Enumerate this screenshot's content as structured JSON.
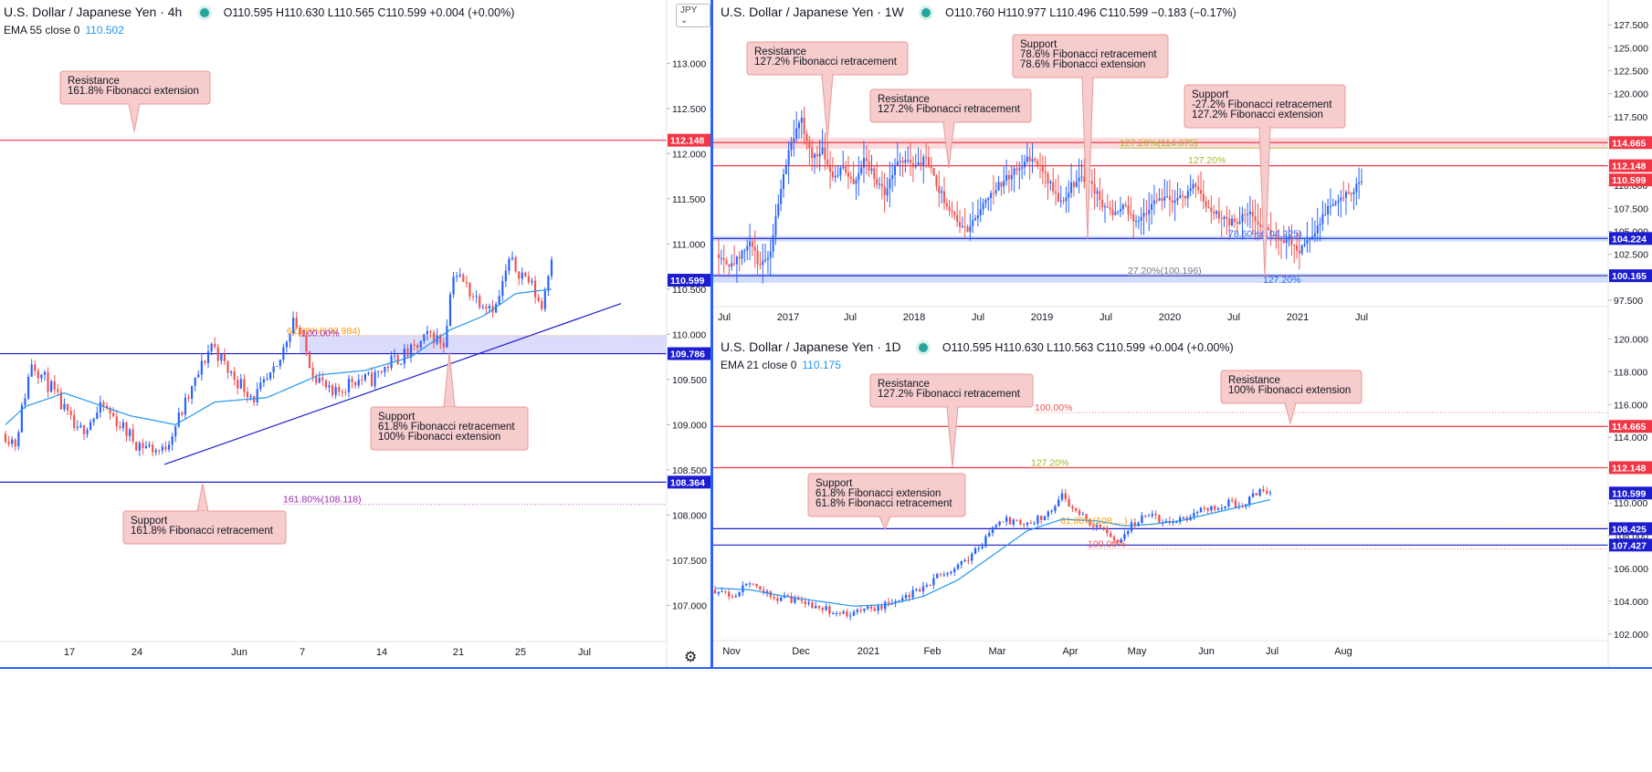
{
  "panes": {
    "left": {
      "title": "U.S. Dollar / Japanese Yen · 4h",
      "ohlc": "O110.595  H110.630  L110.565  C110.599  +0.004 (+0.00%)",
      "ema_label": "EMA 55 close 0",
      "ema_value": "110.502",
      "currency_badge": "JPY"
    },
    "weekly": {
      "title": "U.S. Dollar / Japanese Yen · 1W",
      "ohlc": "O110.760  H110.977  L110.496  C110.599  −0.183 (−0.17%)"
    },
    "daily": {
      "title": "U.S. Dollar / Japanese Yen · 1D",
      "ohlc": "O110.595  H110.630  L110.563  C110.599  +0.004 (+0.00%)",
      "ema_label": "EMA 21 close 0",
      "ema_value": "110.175"
    }
  },
  "colors": {
    "up": "#2962ff",
    "down": "#ef5350",
    "ema": "#2196f3",
    "resistance_line": "#f23645",
    "support_line": "#1c1cd0",
    "callout_fill": "#f6cccc",
    "callout_border": "#e99a9a",
    "fib_orange": "#ff9800",
    "fib_olive": "#a6b628",
    "fib_purple": "#9c27b0",
    "fib_blue": "#2962ff"
  },
  "chart_data": [
    {
      "id": "left",
      "type": "candlestick",
      "title": "U.S. Dollar / Japanese Yen · 4h",
      "ylim": [
        106.6,
        113.7
      ],
      "y_ticks": [
        "107.000",
        "107.500",
        "108.000",
        "108.500",
        "109.000",
        "109.500",
        "110.000",
        "110.500",
        "111.000",
        "111.500",
        "112.000",
        "112.500",
        "113.000"
      ],
      "x_ticks": [
        "17",
        "24",
        "Jun",
        "7",
        "14",
        "21",
        "25",
        "Jul"
      ],
      "close_path": [
        [
          0,
          108.9
        ],
        [
          3,
          108.8
        ],
        [
          8,
          109.7
        ],
        [
          14,
          109.4
        ],
        [
          22,
          108.9
        ],
        [
          30,
          109.2
        ],
        [
          40,
          108.8
        ],
        [
          48,
          108.7
        ],
        [
          56,
          109.3
        ],
        [
          63,
          109.9
        ],
        [
          68,
          109.6
        ],
        [
          76,
          109.3
        ],
        [
          83,
          109.6
        ],
        [
          88,
          110.2
        ],
        [
          94,
          109.6
        ],
        [
          100,
          109.3
        ],
        [
          106,
          109.5
        ],
        [
          112,
          109.5
        ],
        [
          118,
          109.7
        ],
        [
          124,
          109.8
        ],
        [
          130,
          110.0
        ],
        [
          134,
          109.9
        ],
        [
          137,
          110.7
        ],
        [
          144,
          110.4
        ],
        [
          150,
          110.3
        ],
        [
          154,
          110.8
        ],
        [
          160,
          110.6
        ],
        [
          164,
          110.3
        ],
        [
          167,
          110.9
        ]
      ],
      "ema_path": [
        [
          0,
          109.0
        ],
        [
          6,
          109.2
        ],
        [
          18,
          109.35
        ],
        [
          38,
          109.1
        ],
        [
          52,
          109.0
        ],
        [
          64,
          109.25
        ],
        [
          80,
          109.3
        ],
        [
          96,
          109.55
        ],
        [
          110,
          109.6
        ],
        [
          124,
          109.75
        ],
        [
          136,
          110.05
        ],
        [
          146,
          110.2
        ],
        [
          156,
          110.45
        ],
        [
          167,
          110.5
        ]
      ],
      "levels": [
        {
          "value": "112.148",
          "y": 112.148,
          "kind": "resistance"
        },
        {
          "value": "109.786",
          "y": 109.786,
          "kind": "support"
        },
        {
          "value": "108.364",
          "y": 108.364,
          "kind": "support"
        }
      ],
      "last_price": "110.599",
      "last_price_y": 110.599,
      "fib_labels": [
        {
          "text": "61.80%(109.984)",
          "y": 109.984,
          "color": "orange"
        },
        {
          "text": "100.00%",
          "y": 109.96,
          "color": "purple"
        },
        {
          "text": "161.80%(108.118)",
          "y": 108.118,
          "color": "purple"
        }
      ],
      "annotations": [
        {
          "lines": [
            "Resistance",
            "161.8% Fibonacci extension"
          ]
        },
        {
          "lines": [
            "Support",
            "61.8% Fibonacci retracement",
            "100% Fibonacci extension"
          ]
        },
        {
          "lines": [
            "Support",
            "161.8% Fibonacci retracement"
          ]
        }
      ]
    },
    {
      "id": "weekly",
      "type": "candlestick",
      "title": "U.S. Dollar / Japanese Yen · 1W",
      "ylim": [
        96.8,
        130.2
      ],
      "y_ticks": [
        "97.500",
        "100.000",
        "102.500",
        "105.000",
        "107.500",
        "110.000",
        "112.500",
        "115.000",
        "117.500",
        "120.000",
        "122.500",
        "125.000",
        "127.500",
        "130.000"
      ],
      "x_ticks": [
        "Jul",
        "2017",
        "Jul",
        "2018",
        "Jul",
        "2019",
        "Jul",
        "2020",
        "Jul",
        "2021",
        "Jul"
      ],
      "close_path": [
        [
          0,
          102.5
        ],
        [
          4,
          101.5
        ],
        [
          8,
          102
        ],
        [
          12,
          104
        ],
        [
          16,
          101
        ],
        [
          20,
          103
        ],
        [
          24,
          110
        ],
        [
          28,
          115
        ],
        [
          32,
          117
        ],
        [
          36,
          113
        ],
        [
          40,
          114
        ],
        [
          44,
          111
        ],
        [
          48,
          112
        ],
        [
          52,
          110
        ],
        [
          56,
          113
        ],
        [
          60,
          111
        ],
        [
          64,
          109
        ],
        [
          68,
          112
        ],
        [
          72,
          113
        ],
        [
          76,
          112
        ],
        [
          80,
          113
        ],
        [
          84,
          110
        ],
        [
          88,
          108
        ],
        [
          92,
          106
        ],
        [
          96,
          105
        ],
        [
          100,
          107
        ],
        [
          104,
          109
        ],
        [
          108,
          110
        ],
        [
          112,
          111
        ],
        [
          116,
          112
        ],
        [
          120,
          113
        ],
        [
          124,
          112
        ],
        [
          128,
          110
        ],
        [
          132,
          108
        ],
        [
          136,
          110
        ],
        [
          140,
          111
        ],
        [
          144,
          110
        ],
        [
          148,
          108
        ],
        [
          152,
          107
        ],
        [
          156,
          108
        ],
        [
          160,
          106
        ],
        [
          164,
          107
        ],
        [
          168,
          108
        ],
        [
          172,
          109
        ],
        [
          176,
          108
        ],
        [
          180,
          109
        ],
        [
          184,
          110
        ],
        [
          188,
          108
        ],
        [
          192,
          107
        ],
        [
          196,
          106
        ],
        [
          200,
          106
        ],
        [
          204,
          107
        ],
        [
          208,
          106
        ],
        [
          212,
          105
        ],
        [
          216,
          104
        ],
        [
          220,
          104
        ],
        [
          224,
          103
        ],
        [
          228,
          104
        ],
        [
          232,
          106
        ],
        [
          236,
          108
        ],
        [
          240,
          109
        ],
        [
          244,
          109
        ],
        [
          248,
          110.6
        ]
      ],
      "levels": [
        {
          "value": "114.665",
          "y": 114.665,
          "kind": "resistance"
        },
        {
          "value": "112.148",
          "y": 112.148,
          "kind": "resistance"
        },
        {
          "value": "104.224",
          "y": 104.224,
          "kind": "support"
        },
        {
          "value": "100.165",
          "y": 100.165,
          "kind": "support"
        }
      ],
      "last_price": "110.599",
      "last_price_y": 110.599,
      "fib_labels": [
        {
          "text": "127.20%(114.075)",
          "y": 114.075,
          "color": "olive"
        },
        {
          "text": "127.20%",
          "y": 112.2,
          "color": "olive"
        },
        {
          "text": "78.60%(104.225)",
          "y": 104.225,
          "color": "blue"
        },
        {
          "text": "27.20%(100.196)",
          "y": 100.196,
          "color": "gray"
        },
        {
          "text": "127.20%",
          "y": 99.2,
          "color": "blue"
        }
      ],
      "annotations": [
        {
          "lines": [
            "Resistance",
            "127.2% Fibonacci retracement"
          ]
        },
        {
          "lines": [
            "Resistance",
            "127.2% Fibonacci retracement"
          ]
        },
        {
          "lines": [
            "Support",
            "78.6% Fibonacci retracement",
            "78.6% Fibonacci extension"
          ]
        },
        {
          "lines": [
            "Support",
            "-27.2% Fibonacci retracement",
            "127.2% Fibonacci extension"
          ]
        }
      ]
    },
    {
      "id": "daily",
      "type": "candlestick",
      "title": "U.S. Dollar / Japanese Yen · 1D",
      "ylim": [
        101.6,
        120.3
      ],
      "y_ticks": [
        "102.000",
        "104.000",
        "106.000",
        "108.000",
        "110.000",
        "112.000",
        "114.000",
        "116.000",
        "118.000",
        "120.000"
      ],
      "x_ticks": [
        "Nov",
        "Dec",
        "2021",
        "Feb",
        "Mar",
        "Apr",
        "May",
        "Jun",
        "Jul",
        "Aug"
      ],
      "close_path": [
        [
          0,
          104.7
        ],
        [
          6,
          104.4
        ],
        [
          10,
          105.2
        ],
        [
          16,
          104.3
        ],
        [
          22,
          104.1
        ],
        [
          28,
          103.8
        ],
        [
          34,
          103.4
        ],
        [
          40,
          103.2
        ],
        [
          46,
          103.6
        ],
        [
          52,
          103.9
        ],
        [
          58,
          104.6
        ],
        [
          64,
          105.5
        ],
        [
          70,
          106.2
        ],
        [
          76,
          107.2
        ],
        [
          80,
          108.4
        ],
        [
          84,
          108.9
        ],
        [
          88,
          108.7
        ],
        [
          92,
          108.9
        ],
        [
          96,
          109.3
        ],
        [
          100,
          110.4
        ],
        [
          104,
          109.6
        ],
        [
          108,
          108.8
        ],
        [
          112,
          108.3
        ],
        [
          116,
          107.8
        ],
        [
          120,
          108.6
        ],
        [
          124,
          109.3
        ],
        [
          128,
          109.0
        ],
        [
          132,
          108.8
        ],
        [
          136,
          109.0
        ],
        [
          140,
          109.6
        ],
        [
          144,
          109.8
        ],
        [
          148,
          110.0
        ],
        [
          152,
          109.7
        ],
        [
          156,
          110.6
        ],
        [
          160,
          110.6
        ]
      ],
      "ema_path": [
        [
          0,
          104.8
        ],
        [
          10,
          104.7
        ],
        [
          20,
          104.3
        ],
        [
          30,
          104.0
        ],
        [
          40,
          103.7
        ],
        [
          50,
          103.8
        ],
        [
          60,
          104.3
        ],
        [
          70,
          105.3
        ],
        [
          80,
          106.8
        ],
        [
          90,
          108.3
        ],
        [
          100,
          109.0
        ],
        [
          110,
          108.9
        ],
        [
          118,
          108.6
        ],
        [
          126,
          108.7
        ],
        [
          134,
          108.9
        ],
        [
          142,
          109.3
        ],
        [
          150,
          109.7
        ],
        [
          160,
          110.2
        ]
      ],
      "levels": [
        {
          "value": "114.665",
          "y": 114.665,
          "kind": "resistance"
        },
        {
          "value": "112.148",
          "y": 112.148,
          "kind": "resistance"
        },
        {
          "value": "108.425",
          "y": 108.425,
          "kind": "support"
        },
        {
          "value": "107.427",
          "y": 107.427,
          "kind": "support"
        }
      ],
      "last_price": "110.599",
      "last_price_y": 110.599,
      "fib_labels": [
        {
          "text": "100.00%",
          "y": 115.5,
          "color": "red"
        },
        {
          "text": "127.20%",
          "y": 112.15,
          "color": "olive"
        },
        {
          "text": "61.80%(108.…)",
          "y": 108.62,
          "color": "orange"
        },
        {
          "text": "100.00%",
          "y": 107.2,
          "color": "red"
        }
      ],
      "annotations": [
        {
          "lines": [
            "Resistance",
            "127.2% Fibonacci retracement"
          ]
        },
        {
          "lines": [
            "Resistance",
            "100% Fibonacci extension"
          ]
        },
        {
          "lines": [
            "Support",
            "61.8% Fibonacci extension",
            "61.8% Fibonacci retracement"
          ]
        }
      ]
    }
  ]
}
